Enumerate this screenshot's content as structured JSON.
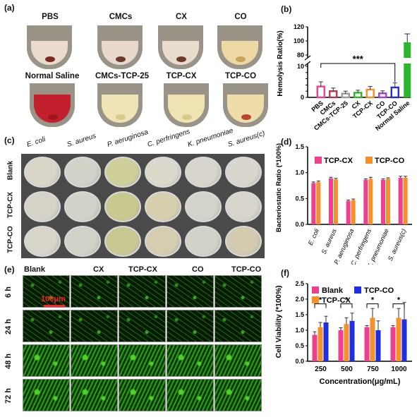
{
  "panel_labels": {
    "a": "(a)",
    "b": "(b)",
    "c": "(c)",
    "d": "(d)",
    "e": "(e)",
    "f": "(f)"
  },
  "panel_a": {
    "tubes_top": [
      {
        "label": "PBS",
        "liquid": "#e9dccf",
        "dot": "#7a2a1e"
      },
      {
        "label": "CMCs",
        "liquid": "#e7dacd",
        "dot": "#6b3a2a"
      },
      {
        "label": "CX",
        "liquid": "#e8dcce",
        "dot": "#6e3a2c"
      },
      {
        "label": "CO",
        "liquid": "#eed9a4",
        "dot": "#c9a35e"
      }
    ],
    "tubes_bottom": [
      {
        "label": "Normal Saline",
        "liquid": "#c2202c",
        "dot": "#a0141e"
      },
      {
        "label": "CMCs-TCP-25",
        "liquid": "#efe4b6",
        "dot": "#d8c98c"
      },
      {
        "label": "TCP-CX",
        "liquid": "#efe3b3",
        "dot": "#d9c98b"
      },
      {
        "label": "TCP-CO",
        "liquid": "#eedda9",
        "dot": "#b8452e"
      }
    ]
  },
  "panel_c": {
    "columns": [
      "E. coli",
      "S. aureus",
      "P. aeruginosa",
      "C. perfringens",
      "K. pneumoniae",
      "S. aureus(c)"
    ],
    "rows": [
      "Blank",
      "TCP-CX",
      "TCP-CO"
    ],
    "dish_colors": [
      [
        "#d9d6c9",
        "#d3d2c8",
        "#cfcf9c",
        "#dbd8cc",
        "#d8d6cc",
        "#d8d6cd"
      ],
      [
        "#d5d3c8",
        "#d2d2c9",
        "#c9c88f",
        "#d6cfae",
        "#d4d3cb",
        "#d6d4cb"
      ],
      [
        "#d7d4c9",
        "#d1d1c8",
        "#c9c893",
        "#d4cdb0",
        "#d3d2c9",
        "#d2cbb0"
      ]
    ]
  },
  "panel_e": {
    "columns": [
      "Blank",
      "CX",
      "TCP-CX",
      "CO",
      "TCP-CO"
    ],
    "rows": [
      "6 h",
      "24 h",
      "48 h",
      "72 h"
    ],
    "scale_bar": "100μm"
  },
  "colors": {
    "pink": "#ef3f8f",
    "orange": "#f5902a",
    "blue": "#1f2fe0",
    "green": "#2fb52d",
    "gray": "#9a9a9a",
    "purple": "#9f3fd6"
  },
  "chart_data": [
    {
      "id": "b",
      "type": "bar",
      "ylabel": "Hemolysis Ratio(%)",
      "categories": [
        "PBS",
        "CMCs",
        "CMCs-TCP-25",
        "CX",
        "TCP-CX",
        "CO",
        "TCP-CO",
        "Normal Saline"
      ],
      "values": [
        3.5,
        2.0,
        1.2,
        1.5,
        2.5,
        1.3,
        3.2,
        98
      ],
      "errors": [
        1.5,
        1.0,
        0.8,
        0.8,
        1.0,
        0.8,
        1.5,
        12
      ],
      "bar_colors": [
        "#ef3f8f",
        "#b33b55",
        "#9a9a9a",
        "#2fb52d",
        "#f5902a",
        "#9f3fd6",
        "#1f2fe0",
        "#2fb52d"
      ],
      "yticks_lower": [
        "0",
        "2",
        "4",
        "6",
        "8",
        "10"
      ],
      "yticks_upper": [
        "80",
        "100",
        "120"
      ],
      "axis_break": true,
      "annotation": "***"
    },
    {
      "id": "d",
      "type": "bar",
      "ylabel": "Bacteriostatic Ratio (*100%)",
      "categories": [
        "E. coli",
        "S. aureus",
        "P. aeruginosa",
        "C. perfringens",
        "K. pneumoniae",
        "S. aureus(c)"
      ],
      "series": [
        {
          "name": "TCP-CX",
          "values": [
            0.8,
            0.89,
            0.45,
            0.86,
            0.86,
            0.9
          ],
          "errors": [
            0.02,
            0.02,
            0.02,
            0.02,
            0.02,
            0.03
          ]
        },
        {
          "name": "TCP-CO",
          "values": [
            0.82,
            0.87,
            0.47,
            0.88,
            0.88,
            0.9
          ],
          "errors": [
            0.02,
            0.02,
            0.02,
            0.03,
            0.02,
            0.03
          ]
        }
      ],
      "ylim": [
        0,
        1.5
      ],
      "yticks": [
        "0.0",
        "0.5",
        "1.0",
        "1.5"
      ],
      "legend": "top"
    },
    {
      "id": "f",
      "type": "bar",
      "ylabel": "Cell Viability (*100%)",
      "xlabel": "Concentration(μg/mL)",
      "categories": [
        "250",
        "500",
        "750",
        "1000"
      ],
      "series": [
        {
          "name": "Blank",
          "values": [
            0.85,
            1.0,
            1.1,
            1.1
          ],
          "errors": [
            0.1,
            0.08,
            0.05,
            0.05
          ]
        },
        {
          "name": "TCP-CX",
          "values": [
            1.1,
            1.2,
            1.4,
            1.4
          ],
          "errors": [
            0.15,
            0.2,
            0.3,
            0.3
          ]
        },
        {
          "name": "TCP-CO",
          "values": [
            1.25,
            1.3,
            1.0,
            1.35
          ],
          "errors": [
            0.2,
            0.25,
            0.3,
            0.55
          ]
        }
      ],
      "ylim": [
        0,
        2.5
      ],
      "yticks": [
        "0.0",
        "0.5",
        "1.0",
        "1.5",
        "2.0",
        "2.5"
      ],
      "annotation": "*",
      "legend": "top"
    }
  ]
}
